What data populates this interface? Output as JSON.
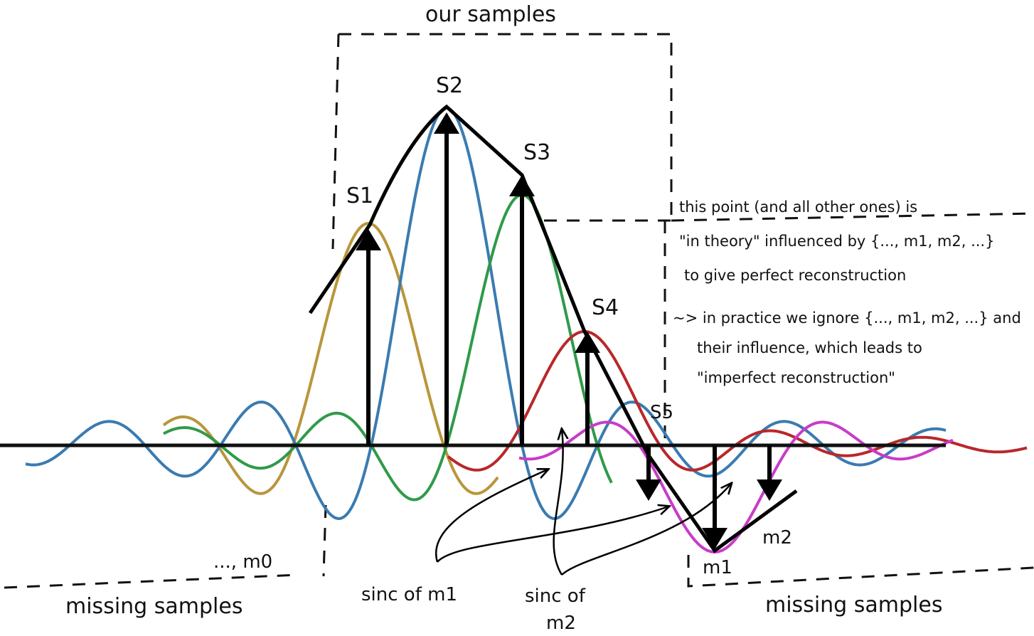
{
  "labels": {
    "our_samples": "our samples",
    "s1": "S1",
    "s2": "S2",
    "s3": "S3",
    "s4": "S4",
    "s5": "S5",
    "m0": "..., m0",
    "m1": "m1",
    "m2": "m2",
    "missing_left": "missing samples",
    "missing_right": "missing samples",
    "sinc_m1": "sinc of m1",
    "sinc_m2_line1": "sinc of",
    "sinc_m2_line2": "m2"
  },
  "notes": {
    "line1": "this point (and all other ones) is",
    "line2": "\"in theory\" influenced by {..., m1, m2, ...}",
    "line3": "to give perfect reconstruction",
    "line4": "~> in practice we ignore {..., m1, m2, ...} and",
    "line5": "their influence, which leads to",
    "line6": "\"imperfect reconstruction\""
  },
  "colors": {
    "axis": "#111111",
    "envelope": "#000000",
    "sinc_s1": "#b8963a",
    "sinc_s2": "#3a7bb0",
    "sinc_s3": "#2f9a4a",
    "sinc_s4": "#b8282a",
    "sinc_m1": "#c83cc8",
    "arrows": "#000000",
    "dashed_box": "#111111"
  },
  "icons": {
    "sample_arrow": "arrow-up-icon",
    "missing_arrow": "arrow-down-icon"
  }
}
